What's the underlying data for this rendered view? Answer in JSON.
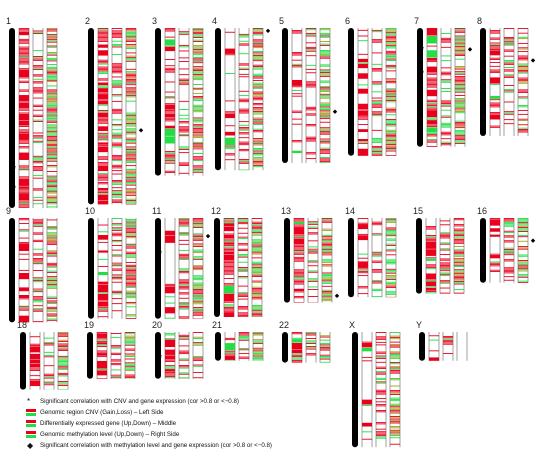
{
  "chromosomes": [
    {
      "label": "1",
      "size": 1.0,
      "cnv": 0.85,
      "expr": 0.55,
      "meth": 0.85,
      "mark_left": [
        0.78,
        0.89
      ],
      "mark_right": []
    },
    {
      "label": "2",
      "size": 0.98,
      "cnv": 0.8,
      "expr": 0.7,
      "meth": 0.85,
      "mark_left": [],
      "mark_right": [
        0.58
      ]
    },
    {
      "label": "3",
      "size": 0.82,
      "cnv": 0.55,
      "expr": 0.55,
      "meth": 0.85,
      "mark_left": [],
      "mark_right": []
    },
    {
      "label": "4",
      "size": 0.79,
      "cnv": 0.25,
      "expr": 0.55,
      "meth": 0.85,
      "mark_left": [],
      "mark_right": [
        0.02
      ]
    },
    {
      "label": "5",
      "size": 0.75,
      "cnv": 0.3,
      "expr": 0.55,
      "meth": 0.85,
      "mark_left": [],
      "mark_right": [
        0.62
      ]
    },
    {
      "label": "6",
      "size": 0.71,
      "cnv": 0.4,
      "expr": 0.55,
      "meth": 0.85,
      "mark_left": [],
      "mark_right": []
    },
    {
      "label": "7",
      "size": 0.66,
      "cnv": 0.75,
      "expr": 0.55,
      "meth": 0.85,
      "mark_left": [
        0.18,
        0.38
      ],
      "mark_right": [
        0.18
      ]
    },
    {
      "label": "8",
      "size": 0.6,
      "cnv": 0.6,
      "expr": 0.55,
      "meth": 0.7,
      "mark_left": [],
      "mark_right": [
        0.3
      ]
    },
    {
      "label": "9",
      "size": 0.58,
      "cnv": 0.35,
      "expr": 0.55,
      "meth": 0.85,
      "mark_left": [],
      "mark_right": []
    },
    {
      "label": "10",
      "size": 0.56,
      "cnv": 0.45,
      "expr": 0.55,
      "meth": 0.85,
      "mark_left": [],
      "mark_right": []
    },
    {
      "label": "11",
      "size": 0.56,
      "cnv": 0.3,
      "expr": 0.55,
      "meth": 0.85,
      "mark_left": [
        0.35
      ],
      "mark_right": [
        0.18
      ]
    },
    {
      "label": "12",
      "size": 0.55,
      "cnv": 0.85,
      "expr": 0.55,
      "meth": 0.85,
      "mark_left": [],
      "mark_right": []
    },
    {
      "label": "13",
      "size": 0.47,
      "cnv": 0.8,
      "expr": 0.55,
      "meth": 0.85,
      "mark_left": [],
      "mark_right": [
        0.92
      ]
    },
    {
      "label": "14",
      "size": 0.44,
      "cnv": 0.3,
      "expr": 0.55,
      "meth": 0.85,
      "mark_left": [],
      "mark_right": []
    },
    {
      "label": "15",
      "size": 0.42,
      "cnv": 0.75,
      "expr": 0.55,
      "meth": 0.85,
      "mark_left": [],
      "mark_right": []
    },
    {
      "label": "16",
      "size": 0.36,
      "cnv": 0.35,
      "expr": 0.55,
      "meth": 0.85,
      "mark_left": [],
      "mark_right": [
        0.35
      ]
    },
    {
      "label": "18",
      "size": 0.32,
      "cnv": 0.75,
      "expr": 0.55,
      "meth": 0.85,
      "mark_left": [],
      "mark_right": []
    },
    {
      "label": "19",
      "size": 0.26,
      "cnv": 0.8,
      "expr": 0.55,
      "meth": 0.85,
      "mark_left": [],
      "mark_right": []
    },
    {
      "label": "20",
      "size": 0.26,
      "cnv": 0.8,
      "expr": 0.55,
      "meth": 0.85,
      "mark_left": [
        0.55
      ],
      "mark_right": []
    },
    {
      "label": "21",
      "size": 0.16,
      "cnv": 0.5,
      "expr": 0.55,
      "meth": 0.85,
      "mark_left": [],
      "mark_right": []
    },
    {
      "label": "22",
      "size": 0.17,
      "cnv": 0.8,
      "expr": 0.55,
      "meth": 0.85,
      "mark_left": [],
      "mark_right": []
    },
    {
      "label": "X",
      "size": 0.64,
      "cnv": 0.2,
      "expr": 0.55,
      "meth": 0.8,
      "mark_left": [],
      "mark_right": []
    },
    {
      "label": "Y",
      "size": 0.16,
      "cnv": 0.5,
      "expr": 0.35,
      "meth": 0.0,
      "mark_left": [],
      "mark_right": []
    }
  ],
  "legend": [
    {
      "symbol": "*",
      "text": "Significant correlation with CNV and gene expression (cor >0.8 or <−0.8)"
    },
    {
      "swatch": [
        "#e8001c",
        "#22dd44"
      ],
      "text": "Genomic region CNV (Gain,Loss) – Left Side"
    },
    {
      "swatch": [
        "#e8001c",
        "#22dd44"
      ],
      "text": "Differentially expressed gene (Up,Down) – Middle"
    },
    {
      "swatch": [
        "#e8001c",
        "#22dd44"
      ],
      "text": "Genomic methylation level (Up,Down) – Right Side"
    },
    {
      "symbol": "◆",
      "text": "Significant correlation with methylation level and gene expression (cor >0.8 or <−0.8)"
    }
  ],
  "colors": {
    "up": "#e8001c",
    "down": "#22dd44",
    "methyl_olive": "#a0a020",
    "idiogram": "#000000"
  }
}
